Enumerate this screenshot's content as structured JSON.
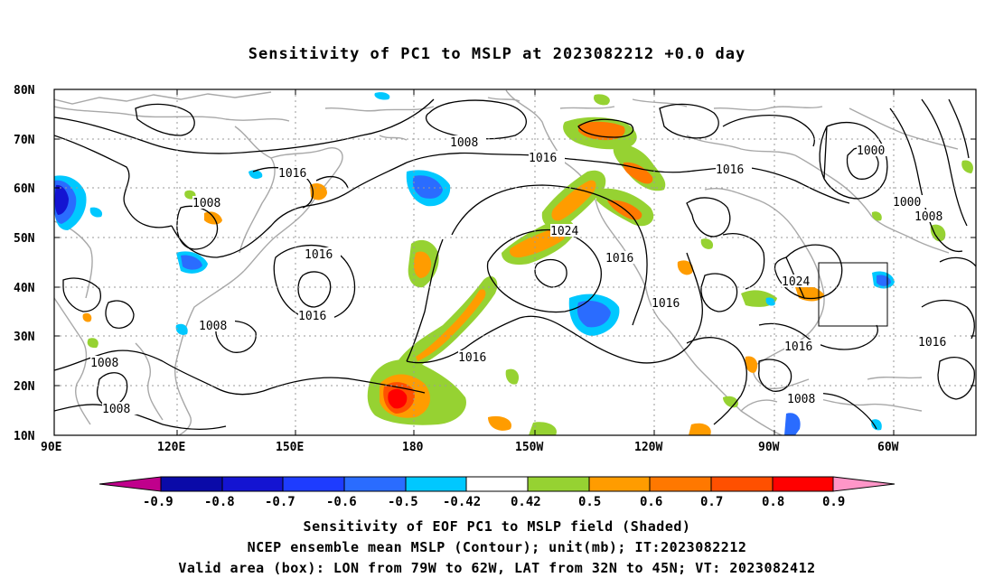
{
  "title": "Sensitivity of PC1 to MSLP at 2023082212 +0.0 day",
  "lat_labels": [
    "80N",
    "70N",
    "60N",
    "50N",
    "40N",
    "30N",
    "20N",
    "10N"
  ],
  "lon_labels": [
    "90E",
    "120E",
    "150E",
    "180",
    "150W",
    "120W",
    "90W",
    "60W"
  ],
  "contour_labels": [
    "1008",
    "1016",
    "1016",
    "1000",
    "1000",
    "1008",
    "1008",
    "1024",
    "1016",
    "1016",
    "1016",
    "1024",
    "1008",
    "1016",
    "1016",
    "1008",
    "1016",
    "1008",
    "1008"
  ],
  "colorbar": {
    "labels": [
      "-0.9",
      "-0.8",
      "-0.7",
      "-0.6",
      "-0.5",
      "-0.42",
      "0.42",
      "0.5",
      "0.6",
      "0.7",
      "0.8",
      "0.9"
    ],
    "colors": [
      "#c0008c",
      "#0a0aa8",
      "#1414d2",
      "#1e3cff",
      "#2a6cff",
      "#1e96ff",
      "#00c8ff",
      "#ffffff",
      "#96d232",
      "#ff9c00",
      "#ff7800",
      "#ff5000",
      "#ff2800",
      "#ff0000",
      "#ff96c8"
    ]
  },
  "map": {
    "valid_box": {
      "lon_from": "79W",
      "lon_to": "62W",
      "lat_from": "32N",
      "lat_to": "45N"
    }
  },
  "captions": [
    "Sensitivity of EOF PC1 to MSLP field (Shaded)",
    "NCEP ensemble mean MSLP (Contour); unit(mb); IT:2023082212",
    "Valid area (box): LON from 79W to 62W, LAT from 32N to 45N; VT: 2023082412"
  ]
}
